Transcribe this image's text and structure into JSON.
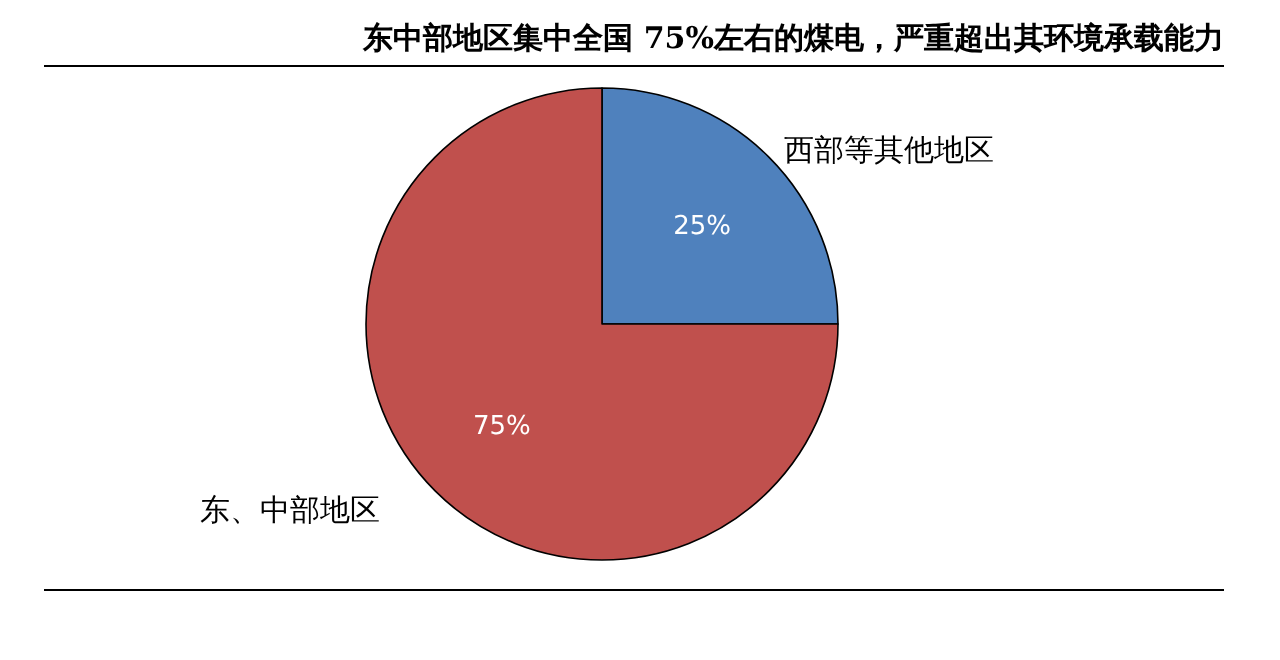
{
  "chart_data": {
    "type": "pie",
    "title": "东中部地区集中全国 75%左右的煤电，严重超出其环境承载能力",
    "categories": [
      "西部等其他地区",
      "东、中部地区"
    ],
    "values": [
      25,
      75
    ],
    "colors": [
      "#4f81bd",
      "#c0504d"
    ],
    "value_labels": [
      "25%",
      "75%"
    ]
  }
}
